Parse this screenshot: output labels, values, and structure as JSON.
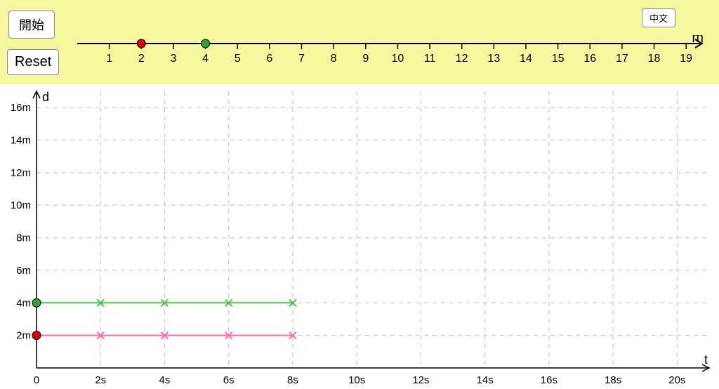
{
  "buttons": {
    "start_label": "開始",
    "reset_label": "Reset",
    "lang_label": "中文"
  },
  "top_panel": {
    "background_color": "#f7f7a0",
    "numberline": {
      "axis_label": "m",
      "min": 0,
      "max": 19.5,
      "tick_start": 1,
      "tick_end": 19,
      "tick_step": 1,
      "tick_labels": [
        "1",
        "2",
        "3",
        "4",
        "5",
        "6",
        "7",
        "8",
        "9",
        "10",
        "11",
        "12",
        "13",
        "14",
        "15",
        "16",
        "17",
        "18",
        "19"
      ],
      "axis_color": "#000000",
      "tick_fontsize": 16,
      "points": [
        {
          "x": 2,
          "color": "#d90000",
          "stroke": "#000000",
          "radius": 6
        },
        {
          "x": 4,
          "color": "#2fa52f",
          "stroke": "#000000",
          "radius": 6
        }
      ]
    }
  },
  "chart": {
    "background_color": "#ffffff",
    "grid_color": "#c8c8c8",
    "grid_dash": "6,6",
    "x_axis": {
      "label": "t",
      "min": 0,
      "max": 21,
      "ticks": [
        0,
        2,
        4,
        6,
        8,
        10,
        12,
        14,
        16,
        18,
        20
      ],
      "tick_labels": [
        "0",
        "2s",
        "4s",
        "6s",
        "8s",
        "10s",
        "12s",
        "14s",
        "16s",
        "18s",
        "20s"
      ],
      "axis_color": "#000000",
      "label_fontsize": 18,
      "tick_fontsize": 15
    },
    "y_axis": {
      "label": "d",
      "min": 0,
      "max": 17,
      "ticks": [
        2,
        4,
        6,
        8,
        10,
        12,
        14,
        16
      ],
      "tick_labels": [
        "2m",
        "4m",
        "6m",
        "8m",
        "10m",
        "12m",
        "14m",
        "16m"
      ],
      "axis_color": "#000000",
      "label_fontsize": 18,
      "tick_fontsize": 15
    },
    "series": [
      {
        "name": "red",
        "color_line": "#ff69b4",
        "color_marker": "#ff69b4",
        "marker_style": "x",
        "start_dot_color": "#d90000",
        "start_dot_stroke": "#000000",
        "start_dot_radius": 6,
        "line_width": 2,
        "data": [
          {
            "t": 0,
            "d": 2
          },
          {
            "t": 2,
            "d": 2
          },
          {
            "t": 4,
            "d": 2
          },
          {
            "t": 6,
            "d": 2
          },
          {
            "t": 8,
            "d": 2
          }
        ]
      },
      {
        "name": "green",
        "color_line": "#4bc24b",
        "color_marker": "#4bc24b",
        "marker_style": "x",
        "start_dot_color": "#2fa52f",
        "start_dot_stroke": "#000000",
        "start_dot_radius": 6,
        "line_width": 2,
        "data": [
          {
            "t": 0,
            "d": 4
          },
          {
            "t": 2,
            "d": 4
          },
          {
            "t": 4,
            "d": 4
          },
          {
            "t": 6,
            "d": 4
          },
          {
            "t": 8,
            "d": 4
          }
        ]
      }
    ]
  }
}
